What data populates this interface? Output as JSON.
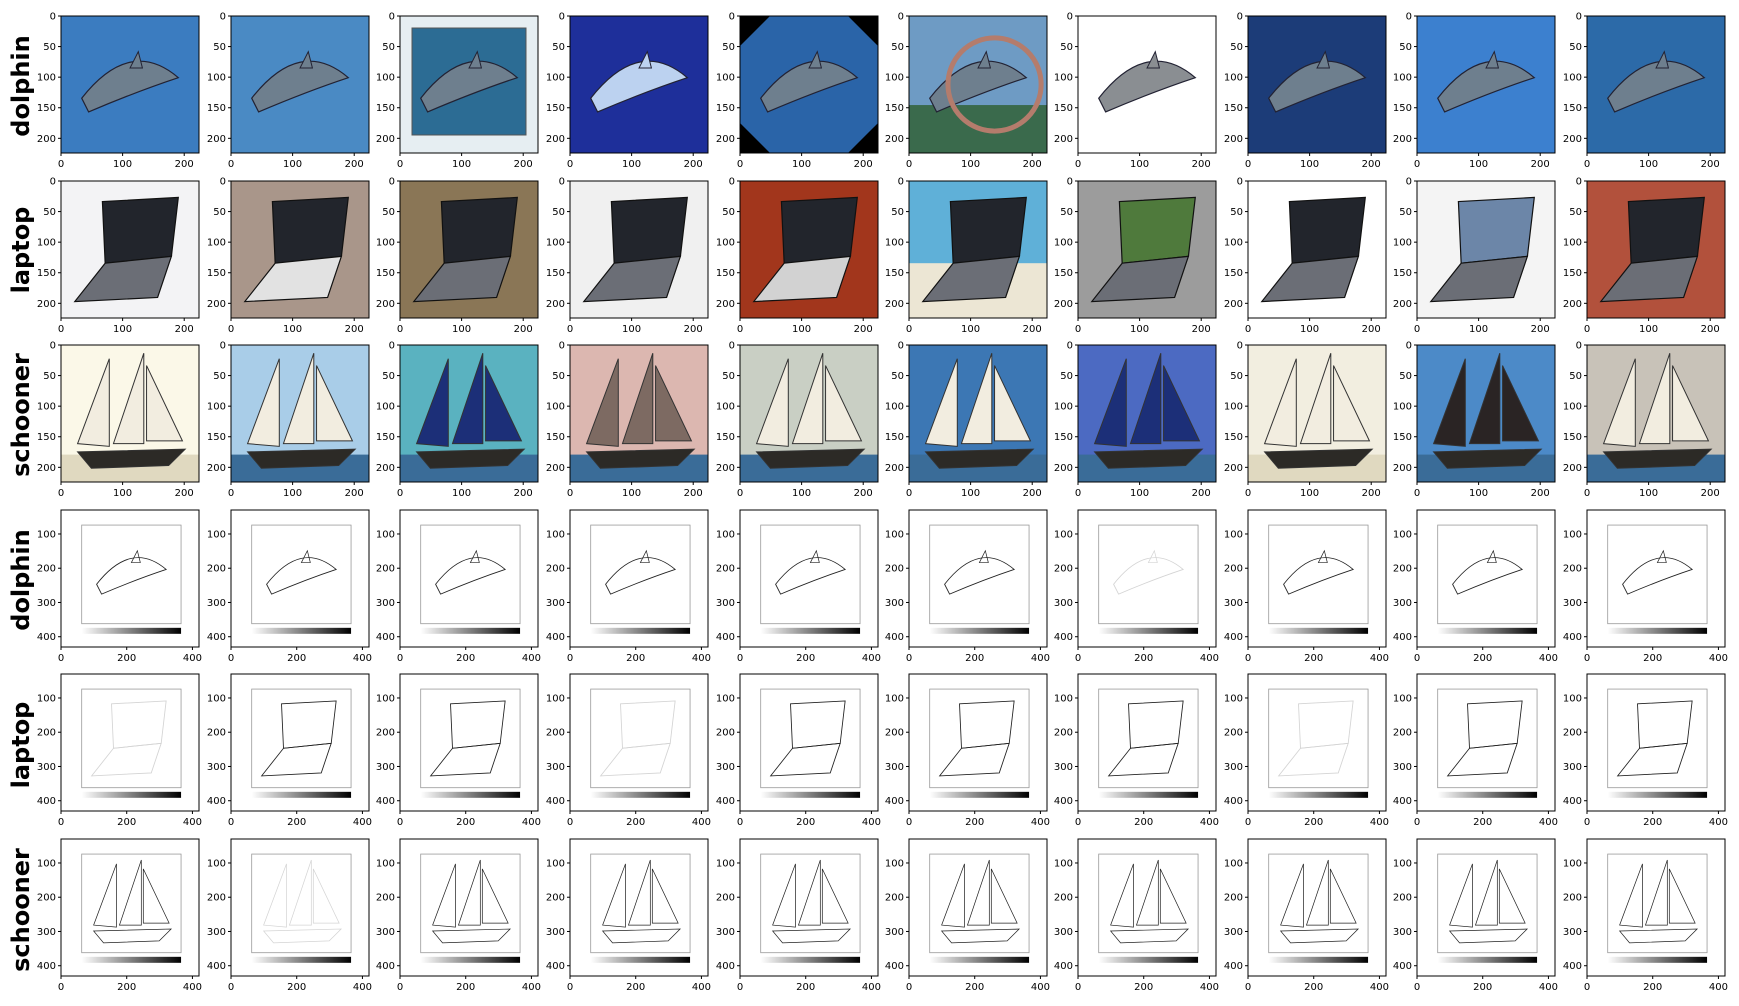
{
  "row_labels": [
    "dolphin",
    "laptop",
    "schooner",
    "dolphin",
    "laptop",
    "schooner"
  ],
  "image_axes": {
    "x_ticks": [
      "0",
      "100",
      "200"
    ],
    "y_ticks": [
      "0",
      "50",
      "100",
      "150",
      "200"
    ]
  },
  "heatmap_axes": {
    "x_ticks": [
      "0",
      "200",
      "400"
    ],
    "y_ticks": [
      "100",
      "200",
      "300",
      "400"
    ]
  },
  "tile_icons": [
    "dolphin-photo",
    "laptop-photo",
    "schooner-photo",
    "dolphin-edge-map",
    "laptop-edge-map",
    "schooner-edge-map"
  ],
  "colors": {
    "ocean": "#2f6fb0",
    "sail": "#e8e2c8",
    "laptop": "#55575e",
    "edge": "#222222"
  }
}
